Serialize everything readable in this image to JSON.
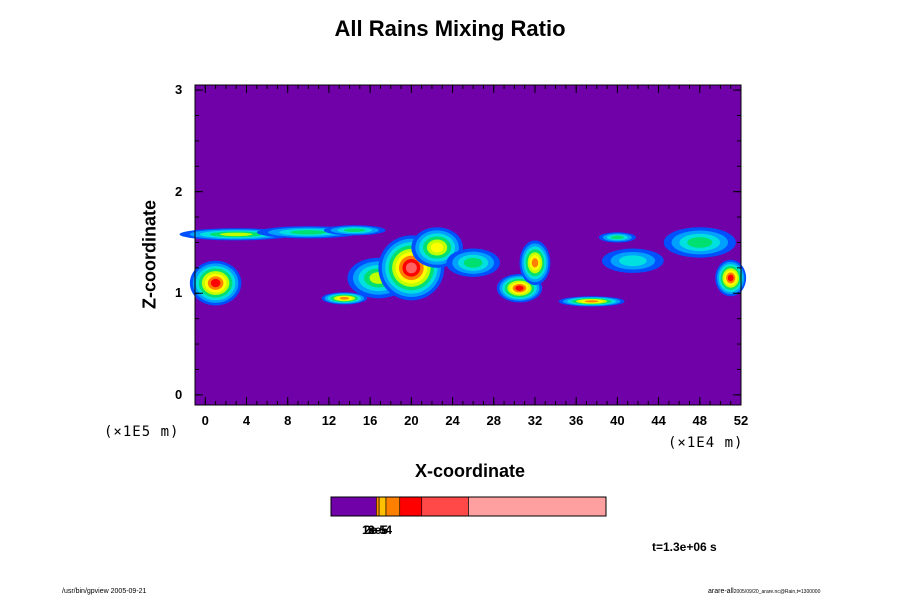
{
  "chart_data": {
    "type": "heatmap",
    "title": "All Rains Mixing Ratio",
    "xlabel": "X-coordinate",
    "ylabel": "Z-coordinate",
    "x_scale_label": "(×1E4 m)",
    "z_scale_label": "(×1E5 m)",
    "x_ticks": [
      "0",
      "4",
      "8",
      "12",
      "16",
      "20",
      "24",
      "28",
      "32",
      "36",
      "40",
      "44",
      "48",
      "52"
    ],
    "z_ticks": [
      "0",
      "1",
      "2",
      "3"
    ],
    "xlim": [
      -1,
      52
    ],
    "ylim": [
      -0.1,
      3.05
    ],
    "background_color": "#7000a8",
    "colorbar": {
      "colors": [
        "#7000a8",
        "#ff8c00",
        "#ffc000",
        "#ff8000",
        "#ff0000",
        "#ff4848",
        "#ffa0a0"
      ],
      "boundaries": [
        0,
        0.165,
        0.175,
        0.2,
        0.25,
        0.33,
        0.5,
        1.0
      ],
      "tick_labels": [
        "1e-5",
        "2e-5",
        "3e-4"
      ]
    },
    "rain_cells": [
      {
        "x": 1.0,
        "z": 1.1,
        "rx": 2.5,
        "rz": 0.22,
        "peak": 6
      },
      {
        "x": 3.0,
        "z": 1.58,
        "rx": 5.5,
        "rz": 0.06,
        "peak": 3
      },
      {
        "x": 10.0,
        "z": 1.6,
        "rx": 5.0,
        "rz": 0.06,
        "peak": 2
      },
      {
        "x": 14.5,
        "z": 1.62,
        "rx": 3.0,
        "rz": 0.05,
        "peak": 2
      },
      {
        "x": 13.5,
        "z": 0.95,
        "rx": 2.2,
        "rz": 0.06,
        "peak": 5
      },
      {
        "x": 16.8,
        "z": 1.15,
        "rx": 3.0,
        "rz": 0.2,
        "peak": 3
      },
      {
        "x": 20.0,
        "z": 1.25,
        "rx": 3.2,
        "rz": 0.32,
        "peak": 7
      },
      {
        "x": 22.5,
        "z": 1.45,
        "rx": 2.5,
        "rz": 0.2,
        "peak": 4
      },
      {
        "x": 26.0,
        "z": 1.3,
        "rx": 2.6,
        "rz": 0.14,
        "peak": 2
      },
      {
        "x": 30.5,
        "z": 1.05,
        "rx": 2.2,
        "rz": 0.14,
        "peak": 6
      },
      {
        "x": 32.0,
        "z": 1.3,
        "rx": 1.5,
        "rz": 0.22,
        "peak": 5
      },
      {
        "x": 37.5,
        "z": 0.92,
        "rx": 3.2,
        "rz": 0.05,
        "peak": 5
      },
      {
        "x": 40.0,
        "z": 1.55,
        "rx": 1.8,
        "rz": 0.05,
        "peak": 2
      },
      {
        "x": 41.5,
        "z": 1.32,
        "rx": 3.0,
        "rz": 0.12,
        "peak": 1
      },
      {
        "x": 48.0,
        "z": 1.5,
        "rx": 3.5,
        "rz": 0.15,
        "peak": 2
      },
      {
        "x": 51.0,
        "z": 1.15,
        "rx": 1.5,
        "rz": 0.18,
        "peak": 6
      }
    ]
  },
  "time_label": "t=1.3e+06 s",
  "footer_left": "/usr/bin/gpview 2005-09-21",
  "footer_right": "arare-all",
  "footer_right_small": "2005/09/20_arare.nc@Rain,t=1300000"
}
